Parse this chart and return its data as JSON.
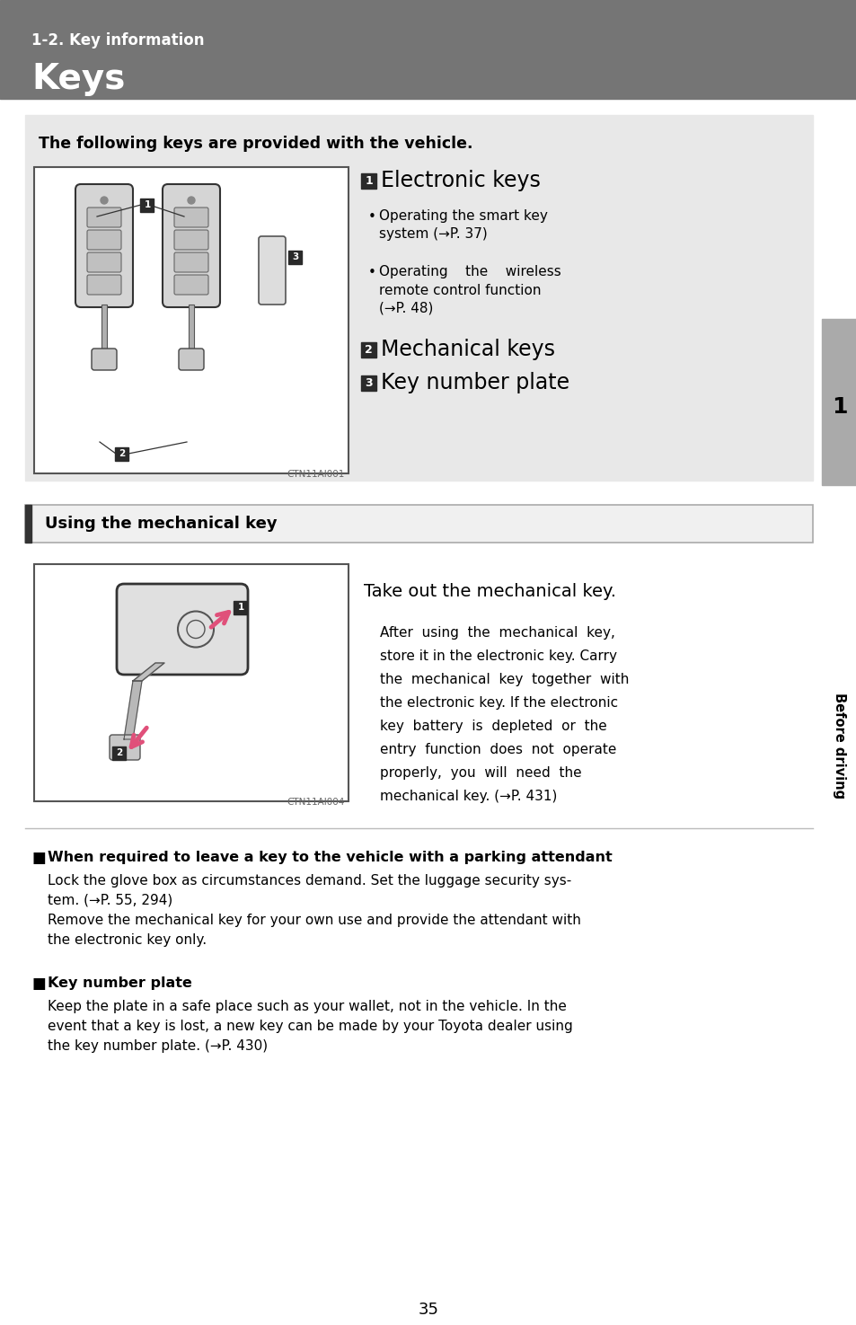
{
  "page_bg": "#ffffff",
  "header_bg": "#757575",
  "header_subtitle": "1-2. Key information",
  "header_title": "Keys",
  "header_text_color": "#ffffff",
  "section1_bg": "#e8e8e8",
  "section1_title": "The following keys are provided with the vehicle.",
  "item1_title": "Electronic keys",
  "item1_bullet1a": "Operating the smart key",
  "item1_bullet1b": "system (→P. 37)",
  "item1_bullet2a": "Operating    the    wireless",
  "item1_bullet2b": "remote control function",
  "item1_bullet2c": "(→P. 48)",
  "item2_title": "Mechanical keys",
  "item3_title": "Key number plate",
  "img1_caption": "CTN11AI001",
  "section2_title": "Using the mechanical key",
  "section2_instruction": "Take out the mechanical key.",
  "section2_body_lines": [
    "After  using  the  mechanical  key,",
    "store it in the electronic key. Carry",
    "the  mechanical  key  together  with",
    "the electronic key. If the electronic",
    "key  battery  is  depleted  or  the",
    "entry  function  does  not  operate",
    "properly,  you  will  need  the",
    "mechanical key. (→P. 431)"
  ],
  "img2_caption": "CTN11AI004",
  "note1_header": "When required to leave a key to the vehicle with a parking attendant",
  "note1_body_lines": [
    "Lock the glove box as circumstances demand. Set the luggage security sys-",
    "tem. (→P. 55, 294)",
    "Remove the mechanical key for your own use and provide the attendant with",
    "the electronic key only."
  ],
  "note2_header": "Key number plate",
  "note2_body_lines": [
    "Keep the plate in a safe place such as your wallet, not in the vehicle. In the",
    "event that a key is lost, a new key can be made by your Toyota dealer using",
    "the key number plate. (→P. 430)"
  ],
  "sidebar_text": "Before driving",
  "sidebar_num": "1",
  "page_num": "35",
  "label_bg": "#2a2a2a",
  "label_text_color": "#ffffff",
  "arrow_color": "#e0507a"
}
